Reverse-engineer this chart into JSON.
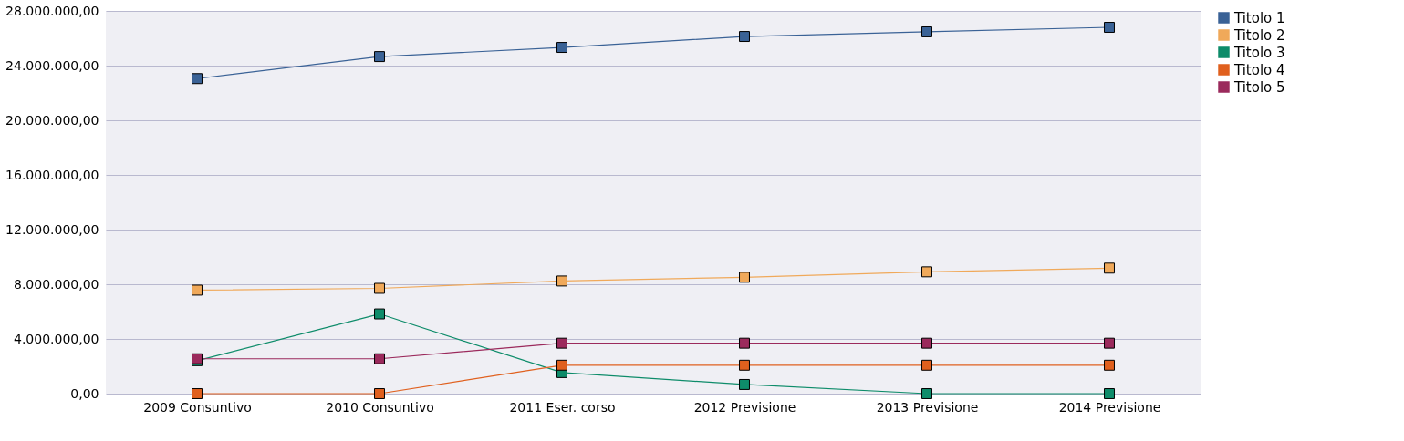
{
  "chart_data": {
    "type": "line",
    "categories": [
      "2009 Consuntivo",
      "2010 Consuntivo",
      "2011 Eser. corso",
      "2012 Previsione",
      "2013 Previsione",
      "2014 Previsione"
    ],
    "series": [
      {
        "name": "Titolo 1",
        "color": "#3a6296",
        "values": [
          23050000,
          24660000,
          25330000,
          26130000,
          26470000,
          26800000
        ]
      },
      {
        "name": "Titolo 2",
        "color": "#f0a95a",
        "values": [
          7570000,
          7700000,
          8240000,
          8510000,
          8910000,
          9180000
        ]
      },
      {
        "name": "Titolo 3",
        "color": "#0e8c6a",
        "values": [
          2410000,
          5830000,
          1540000,
          670000,
          0,
          0
        ]
      },
      {
        "name": "Titolo 4",
        "color": "#e0601e",
        "values": [
          0,
          0,
          2080000,
          2080000,
          2080000,
          2080000
        ]
      },
      {
        "name": "Titolo 5",
        "color": "#9b2a5c",
        "values": [
          2550000,
          2550000,
          3690000,
          3690000,
          3690000,
          3690000
        ]
      }
    ],
    "ylim": [
      0,
      28000000
    ],
    "yticks": [
      {
        "value": 0,
        "label": "0,00"
      },
      {
        "value": 4000000,
        "label": "4.000.000,00"
      },
      {
        "value": 8000000,
        "label": "8.000.000,00"
      },
      {
        "value": 12000000,
        "label": "12.000.000,00"
      },
      {
        "value": 16000000,
        "label": "16.000.000,00"
      },
      {
        "value": 20000000,
        "label": "20.000.000,00"
      },
      {
        "value": 24000000,
        "label": "24.000.000,00"
      },
      {
        "value": 28000000,
        "label": "28.000.000,00"
      }
    ],
    "grid": "y",
    "legend": "right",
    "marker": "square",
    "line_style": "solid"
  }
}
